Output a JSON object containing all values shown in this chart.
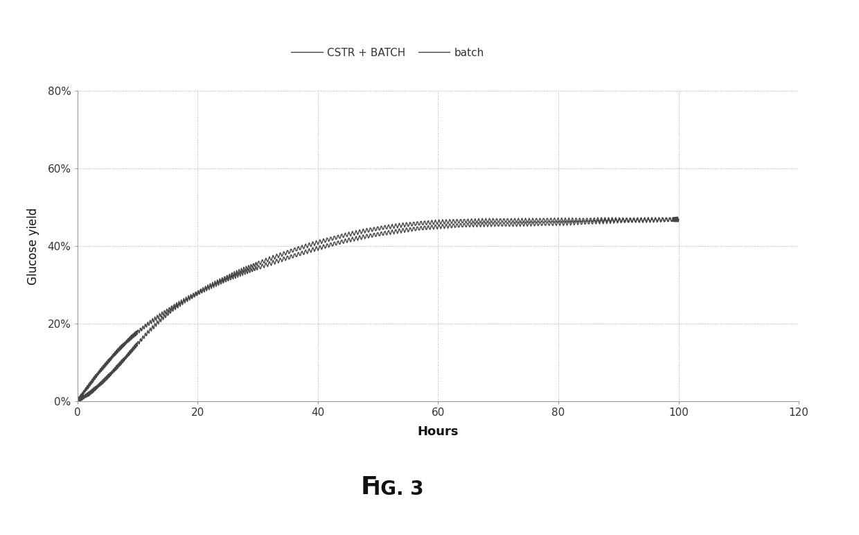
{
  "xlabel": "Hours",
  "ylabel": "Glucose yield",
  "xlim": [
    0,
    120
  ],
  "ylim": [
    0,
    0.8
  ],
  "yticks": [
    0.0,
    0.2,
    0.4,
    0.6,
    0.8
  ],
  "ytick_labels": [
    "0%",
    "20%",
    "40%",
    "60%",
    "80%"
  ],
  "xticks": [
    0,
    20,
    40,
    60,
    80,
    100,
    120
  ],
  "legend_labels": [
    "CSTR + BATCH",
    "batch"
  ],
  "line_color": "#444444",
  "background_color": "#ffffff",
  "grid_color": "#aaaaaa",
  "fig_caption_F": "F",
  "fig_caption_rest": "IG. 3",
  "cstr_x": [
    0,
    1,
    2,
    3,
    4,
    5,
    6,
    7,
    8,
    9,
    10,
    12,
    14,
    16,
    18,
    20,
    22,
    24,
    26,
    28,
    30,
    33,
    36,
    39,
    42,
    45,
    48,
    51,
    54,
    57,
    60,
    63,
    66,
    69,
    72,
    75,
    78,
    81,
    84,
    87,
    90,
    93,
    96,
    99,
    100
  ],
  "cstr_y": [
    0.0,
    0.022,
    0.042,
    0.063,
    0.082,
    0.1,
    0.118,
    0.135,
    0.15,
    0.165,
    0.178,
    0.202,
    0.224,
    0.244,
    0.262,
    0.28,
    0.297,
    0.313,
    0.328,
    0.342,
    0.355,
    0.373,
    0.39,
    0.405,
    0.418,
    0.43,
    0.44,
    0.448,
    0.454,
    0.459,
    0.462,
    0.464,
    0.465,
    0.466,
    0.466,
    0.466,
    0.467,
    0.467,
    0.467,
    0.468,
    0.468,
    0.468,
    0.468,
    0.469,
    0.469
  ],
  "batch_x": [
    0,
    1,
    2,
    3,
    4,
    5,
    6,
    7,
    8,
    9,
    10,
    12,
    14,
    16,
    18,
    20,
    22,
    24,
    26,
    28,
    30,
    33,
    36,
    39,
    42,
    45,
    48,
    51,
    54,
    57,
    60,
    63,
    66,
    69,
    72,
    75,
    78,
    81,
    84,
    87,
    90,
    93,
    96,
    99,
    100
  ],
  "batch_y": [
    0.0,
    0.01,
    0.02,
    0.033,
    0.047,
    0.062,
    0.078,
    0.095,
    0.112,
    0.13,
    0.148,
    0.182,
    0.212,
    0.238,
    0.26,
    0.278,
    0.294,
    0.308,
    0.321,
    0.333,
    0.344,
    0.36,
    0.375,
    0.39,
    0.403,
    0.415,
    0.425,
    0.433,
    0.44,
    0.446,
    0.45,
    0.453,
    0.455,
    0.456,
    0.456,
    0.457,
    0.458,
    0.459,
    0.461,
    0.463,
    0.465,
    0.466,
    0.467,
    0.468,
    0.469
  ]
}
